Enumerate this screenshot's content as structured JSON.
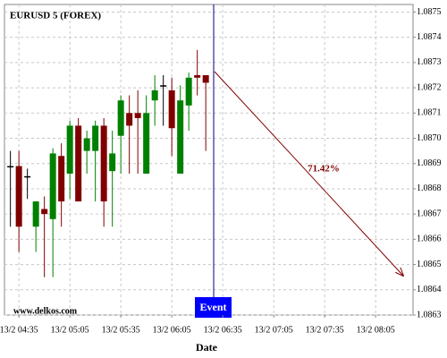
{
  "chart_data": {
    "type": "candlestick",
    "title": "EURUSD 5 (FOREX)",
    "source": "www.delkos.com",
    "x_label": "Date",
    "event_label": "Event",
    "annotation": "71.42%",
    "up_color": "#008000",
    "down_color": "#800000",
    "flat_color": "#000000",
    "grid": true,
    "x": [
      270,
      275,
      280,
      285,
      290,
      295,
      300,
      305,
      310,
      315,
      320,
      325,
      330,
      335,
      340,
      345,
      350,
      355,
      360,
      365,
      370,
      375,
      380,
      385
    ],
    "open": [
      1.08689,
      1.08689,
      1.08685,
      1.08665,
      1.08672,
      1.08668,
      1.08693,
      1.08686,
      1.08705,
      1.08695,
      1.08695,
      1.08705,
      1.08687,
      1.08701,
      1.0871,
      1.0871,
      1.08686,
      1.08715,
      1.08721,
      1.08719,
      1.08686,
      1.08713,
      1.08725,
      1.08725
    ],
    "high": [
      1.08695,
      1.08695,
      1.08688,
      1.08675,
      1.08677,
      1.08696,
      1.08698,
      1.08707,
      1.08708,
      1.08703,
      1.08707,
      1.08708,
      1.08703,
      1.08717,
      1.08717,
      1.08719,
      1.08717,
      1.08725,
      1.08725,
      1.08724,
      1.08721,
      1.08726,
      1.08735,
      1.08725
    ],
    "low": [
      1.08665,
      1.08655,
      1.08676,
      1.08655,
      1.08645,
      1.08645,
      1.08665,
      1.08676,
      1.08675,
      1.08686,
      1.08675,
      1.08665,
      1.08665,
      1.08686,
      1.08686,
      1.08686,
      1.08686,
      1.08705,
      1.08705,
      1.08693,
      1.08686,
      1.08703,
      1.08717,
      1.08695
    ],
    "close": [
      1.08689,
      1.08665,
      1.08685,
      1.08675,
      1.0867,
      1.08694,
      1.08675,
      1.08705,
      1.08675,
      1.087,
      1.08705,
      1.08675,
      1.08694,
      1.08715,
      1.08705,
      1.08708,
      1.0871,
      1.08719,
      1.08721,
      1.08704,
      1.08715,
      1.08724,
      1.08724,
      1.08722
    ],
    "xlim": [
      266.5,
      507
    ],
    "xticks": [
      {
        "value": 275,
        "label": "13/2 04:35"
      },
      {
        "value": 305,
        "label": "13/2 05:05"
      },
      {
        "value": 335,
        "label": "13/2 05:35"
      },
      {
        "value": 365,
        "label": "13/2 06:05"
      },
      {
        "value": 395,
        "label": "13/2 06:35"
      },
      {
        "value": 425,
        "label": "13/2 07:05"
      },
      {
        "value": 455,
        "label": "13/2 07:35"
      },
      {
        "value": 485,
        "label": "13/2 08:05"
      }
    ],
    "ylim": [
      1.0863,
      1.08753
    ],
    "yticks": [
      1.0863,
      1.0864,
      1.0865,
      1.0866,
      1.0867,
      1.0868,
      1.0869,
      {
        "value": 1.087,
        "label": "1.0870"
      },
      1.0871,
      1.0872,
      1.0873,
      1.0874,
      1.0875
    ]
  }
}
